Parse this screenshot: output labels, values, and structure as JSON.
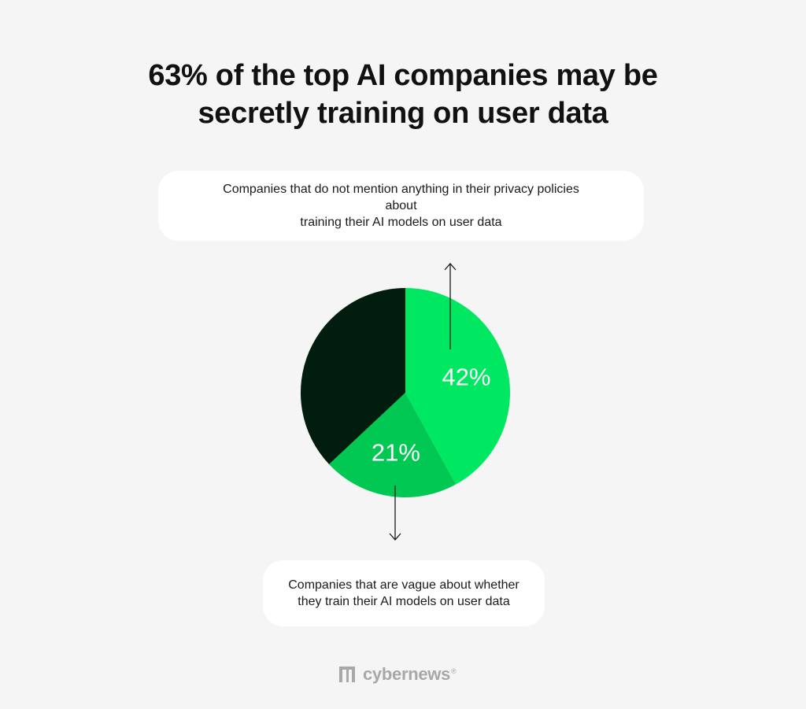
{
  "title_line1": "63% of the top AI companies may be",
  "title_line2": "secretly training on user data",
  "callout_top_line1": "Companies that do not mention anything in their privacy policies about",
  "callout_top_line2": "training their AI models on user data",
  "callout_bottom_line1": "Companies that are vague about whether",
  "callout_bottom_line2": "they train their AI models on user data",
  "brand": {
    "name": "cybernews",
    "mark": "®"
  },
  "colors": {
    "background": "#f5f5f5",
    "text": "#111111",
    "slice_bright": "#00e862",
    "slice_mid": "#00c853",
    "slice_dark": "#011d0d",
    "label": "#ffffff",
    "logo": "#a8a8a8"
  },
  "chart_data": {
    "type": "pie",
    "slices": [
      {
        "label": "42%",
        "value": 42,
        "color": "#00e862"
      },
      {
        "label": "21%",
        "value": 21,
        "color": "#00c853"
      },
      {
        "label": "",
        "value": 37,
        "color": "#011d0d"
      }
    ]
  }
}
